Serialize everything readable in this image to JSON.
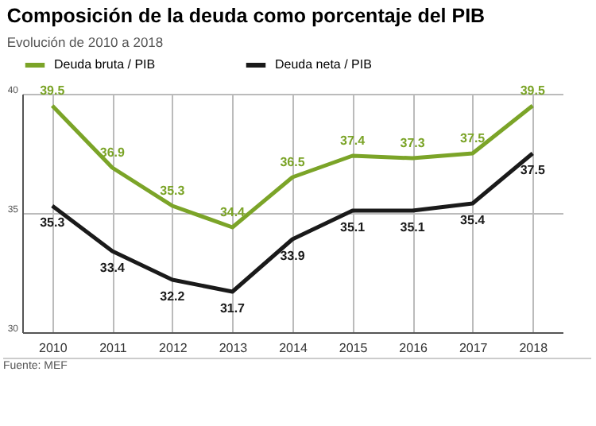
{
  "chart_data": {
    "type": "line",
    "title": "Composición de la deuda como porcentaje del PIB",
    "subtitle": "Evolución de 2010 a 2018",
    "categories": [
      "2010",
      "2011",
      "2012",
      "2013",
      "2014",
      "2015",
      "2016",
      "2017",
      "2018"
    ],
    "series": [
      {
        "name": "Deuda bruta / PIB",
        "color": "#7ba428",
        "values": [
          39.5,
          36.9,
          35.3,
          34.4,
          36.5,
          37.4,
          37.3,
          37.5,
          39.5
        ]
      },
      {
        "name": "Deuda neta / PIB",
        "color": "#1a1a1a",
        "values": [
          35.3,
          33.4,
          32.2,
          31.7,
          33.9,
          35.1,
          35.1,
          35.4,
          37.5
        ]
      }
    ],
    "ylim": [
      30,
      40
    ],
    "yticks": [
      30,
      35,
      40
    ],
    "grid": true,
    "legend": "top left",
    "data_labels": true,
    "marker": "none",
    "line_style": "solid",
    "annotations": [
      "Fuente: MEF"
    ]
  }
}
